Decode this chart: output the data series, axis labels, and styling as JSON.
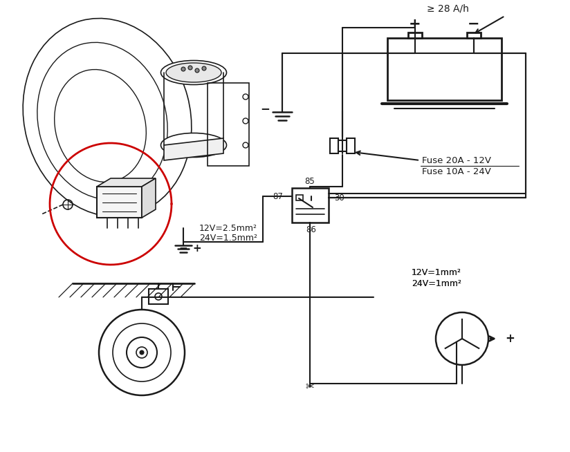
{
  "bg_color": "#ffffff",
  "line_color": "#1a1a1a",
  "red_circle_color": "#cc0000",
  "fig_width": 8.24,
  "fig_height": 6.54,
  "battery_label": "≥ 28 A/h",
  "plus_label": "+",
  "minus_label": "−",
  "wire_label1": "12V=2.5mm²",
  "wire_label2": "24V=1.5mm²",
  "wire_label3": "12V=1mm²",
  "wire_label4": "24V=1mm²",
  "fuse_label1": "Fuse 20A - 12V",
  "fuse_label2": "Fuse 10A - 24V"
}
